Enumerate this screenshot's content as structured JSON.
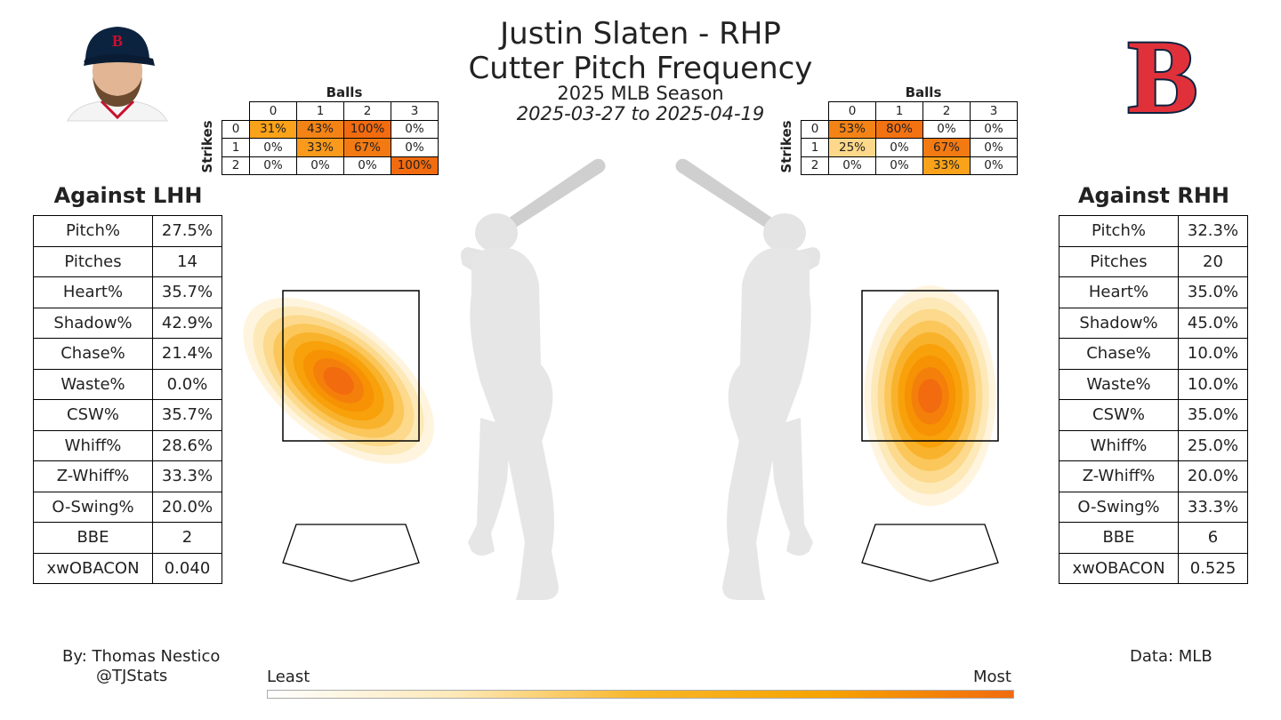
{
  "header": {
    "title_line1": "Justin Slaten - RHP",
    "title_line2": "Cutter Pitch Frequency",
    "season": "2025 MLB Season",
    "date_range": "2025-03-27 to 2025-04-19"
  },
  "logo": {
    "letter": "B",
    "color": "#e0313a",
    "outline": "#0c2340"
  },
  "footer": {
    "by": "By: Thomas Nestico",
    "handle": "@TJStats",
    "source": "Data: MLB"
  },
  "colorbar": {
    "least": "Least",
    "most": "Most",
    "colors": [
      "#ffffff",
      "#fde9b8",
      "#f8b628",
      "#f7a300",
      "#f26b0f"
    ]
  },
  "lhh": {
    "title": "Against LHH",
    "stats": [
      {
        "label": "Pitch%",
        "value": "27.5%"
      },
      {
        "label": "Pitches",
        "value": "14"
      },
      {
        "label": "Heart%",
        "value": "35.7%"
      },
      {
        "label": "Shadow%",
        "value": "42.9%"
      },
      {
        "label": "Chase%",
        "value": "21.4%"
      },
      {
        "label": "Waste%",
        "value": "0.0%"
      },
      {
        "label": "CSW%",
        "value": "35.7%"
      },
      {
        "label": "Whiff%",
        "value": "28.6%"
      },
      {
        "label": "Z-Whiff%",
        "value": "33.3%"
      },
      {
        "label": "O-Swing%",
        "value": "20.0%"
      },
      {
        "label": "BBE",
        "value": "2"
      },
      {
        "label": "xwOBACON",
        "value": "0.040"
      }
    ],
    "count": {
      "balls_label": "Balls",
      "strikes_label": "Strikes",
      "ball_headers": [
        "0",
        "1",
        "2",
        "3"
      ],
      "rows": [
        {
          "strikes": "0",
          "cells": [
            "31%",
            "43%",
            "100%",
            "0%"
          ],
          "colors": [
            "#f9a21a",
            "#f48316",
            "#f26b0f",
            "#ffffff"
          ]
        },
        {
          "strikes": "1",
          "cells": [
            "0%",
            "33%",
            "67%",
            "0%"
          ],
          "colors": [
            "#ffffff",
            "#f99a1d",
            "#f37a12",
            "#ffffff"
          ]
        },
        {
          "strikes": "2",
          "cells": [
            "0%",
            "0%",
            "0%",
            "100%"
          ],
          "colors": [
            "#ffffff",
            "#ffffff",
            "#ffffff",
            "#f26b0f"
          ]
        }
      ]
    }
  },
  "rhh": {
    "title": "Against RHH",
    "stats": [
      {
        "label": "Pitch%",
        "value": "32.3%"
      },
      {
        "label": "Pitches",
        "value": "20"
      },
      {
        "label": "Heart%",
        "value": "35.0%"
      },
      {
        "label": "Shadow%",
        "value": "45.0%"
      },
      {
        "label": "Chase%",
        "value": "10.0%"
      },
      {
        "label": "Waste%",
        "value": "10.0%"
      },
      {
        "label": "CSW%",
        "value": "35.0%"
      },
      {
        "label": "Whiff%",
        "value": "25.0%"
      },
      {
        "label": "Z-Whiff%",
        "value": "20.0%"
      },
      {
        "label": "O-Swing%",
        "value": "33.3%"
      },
      {
        "label": "BBE",
        "value": "6"
      },
      {
        "label": "xwOBACON",
        "value": "0.525"
      }
    ],
    "count": {
      "balls_label": "Balls",
      "strikes_label": "Strikes",
      "ball_headers": [
        "0",
        "1",
        "2",
        "3"
      ],
      "rows": [
        {
          "strikes": "0",
          "cells": [
            "53%",
            "80%",
            "0%",
            "0%"
          ],
          "colors": [
            "#f48316",
            "#f37212",
            "#ffffff",
            "#ffffff"
          ]
        },
        {
          "strikes": "1",
          "cells": [
            "25%",
            "0%",
            "67%",
            "0%"
          ],
          "colors": [
            "#fdd88a",
            "#ffffff",
            "#f37a12",
            "#ffffff"
          ]
        },
        {
          "strikes": "2",
          "cells": [
            "0%",
            "0%",
            "33%",
            "0%"
          ],
          "colors": [
            "#ffffff",
            "#ffffff",
            "#f9a21a",
            "#ffffff"
          ]
        }
      ]
    }
  },
  "chart_data": [
    {
      "type": "heatmap",
      "batter_side": "LHH",
      "density_peak": {
        "x": -0.15,
        "y": 2.3
      },
      "colormap": [
        "#ffffff",
        "#fde9b8",
        "#f8b628",
        "#f7a300",
        "#f26b0f"
      ]
    },
    {
      "type": "heatmap",
      "batter_side": "RHH",
      "density_peak": {
        "x": 0.0,
        "y": 2.1
      },
      "colormap": [
        "#ffffff",
        "#fde9b8",
        "#f8b628",
        "#f7a300",
        "#f26b0f"
      ]
    }
  ]
}
